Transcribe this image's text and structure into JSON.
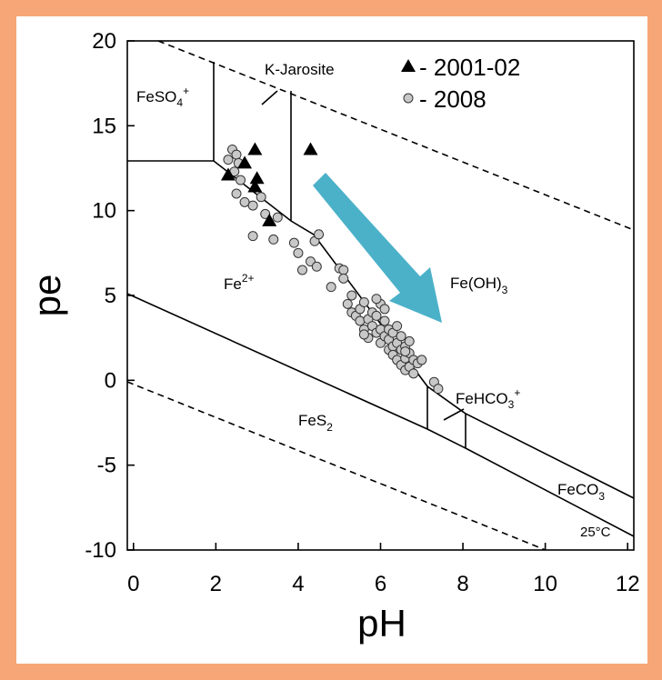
{
  "chart_data": {
    "type": "scatter",
    "x_label": "pH",
    "y_label": "pe",
    "xlim": [
      -0.15,
      12.15
    ],
    "ylim": [
      -10,
      20
    ],
    "xticks": [
      0,
      2,
      4,
      6,
      8,
      10,
      12
    ],
    "yticks": [
      -10,
      -5,
      0,
      5,
      10,
      15,
      20
    ],
    "grid": false,
    "annotations": [
      {
        "base": "FeSO",
        "sub": "4",
        "sup": "+"
      },
      {
        "base": "K-Jarosite"
      },
      {
        "base": "Fe",
        "sup": "2+"
      },
      {
        "base": "Fe(OH)",
        "sub": "3"
      },
      {
        "base": "FeHCO",
        "sub": "3",
        "sup": "+"
      },
      {
        "base": "FeS",
        "sub": "2"
      },
      {
        "base": "FeCO",
        "sub": "3"
      },
      {
        "base": "25°C"
      }
    ],
    "series": [
      {
        "name": "- 2001-02",
        "marker": "triangle",
        "color": "#000000",
        "x": [
          2.3,
          2.7,
          2.95,
          3.0,
          2.95,
          3.3,
          4.3
        ],
        "values": [
          12.1,
          12.8,
          13.6,
          11.9,
          11.4,
          9.4,
          13.6
        ]
      },
      {
        "name": "- 2008",
        "marker": "circle",
        "color": "#c8c8c8",
        "x": [
          2.3,
          2.4,
          2.5,
          2.55,
          2.45,
          2.6,
          2.5,
          2.7,
          2.9,
          3.1,
          3.2,
          3.5,
          3.4,
          2.9,
          3.9,
          4.0,
          4.1,
          4.3,
          4.45,
          4.4,
          4.5,
          4.8,
          5.0,
          5.1,
          5.1,
          5.3,
          5.3,
          5.4,
          5.5,
          5.5,
          5.6,
          5.6,
          5.7,
          5.7,
          5.8,
          5.8,
          5.9,
          5.9,
          6.0,
          6.0,
          6.0,
          6.1,
          6.1,
          6.2,
          6.2,
          6.2,
          6.3,
          6.3,
          6.3,
          6.4,
          6.4,
          6.4,
          6.5,
          6.5,
          6.5,
          6.6,
          6.6,
          6.6,
          6.7,
          6.7,
          6.7,
          6.8,
          6.8,
          6.9,
          6.6,
          7.0,
          7.3,
          7.4,
          5.2,
          5.6,
          6.1,
          5.9
        ],
        "values": [
          13.0,
          13.6,
          13.3,
          12.8,
          12.3,
          11.8,
          11.0,
          10.5,
          10.3,
          10.8,
          9.8,
          9.6,
          8.3,
          8.5,
          8.1,
          7.5,
          6.5,
          7.0,
          6.7,
          8.2,
          8.6,
          5.5,
          6.6,
          6.5,
          6.0,
          5.0,
          4.0,
          3.8,
          4.2,
          3.5,
          4.6,
          3.0,
          3.6,
          2.5,
          4.0,
          3.2,
          2.8,
          3.8,
          2.2,
          3.0,
          4.5,
          2.6,
          3.5,
          1.8,
          2.4,
          3.0,
          2.0,
          1.5,
          2.8,
          1.2,
          2.2,
          3.2,
          1.8,
          0.9,
          2.6,
          1.3,
          2.0,
          0.6,
          1.6,
          0.8,
          2.3,
          1.2,
          0.4,
          1.0,
          1.7,
          1.2,
          -0.1,
          -0.5,
          4.5,
          2.7,
          4.2,
          4.8
        ]
      }
    ]
  }
}
